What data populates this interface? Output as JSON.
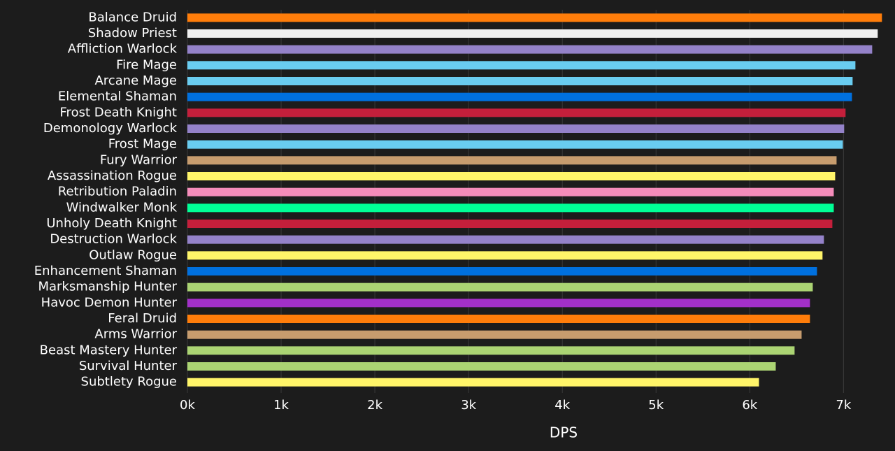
{
  "chart_data": {
    "type": "bar",
    "orientation": "horizontal",
    "x_label": "DPS",
    "categories": [
      "Balance Druid",
      "Shadow Priest",
      "Affliction Warlock",
      "Fire Mage",
      "Arcane Mage",
      "Elemental Shaman",
      "Frost Death Knight",
      "Demonology Warlock",
      "Frost Mage",
      "Fury Warrior",
      "Assassination Rogue",
      "Retribution Paladin",
      "Windwalker Monk",
      "Unholy Death Knight",
      "Destruction Warlock",
      "Outlaw Rogue",
      "Enhancement Shaman",
      "Marksmanship Hunter",
      "Havoc Demon Hunter",
      "Feral Druid",
      "Arms Warrior",
      "Beast Mastery Hunter",
      "Survival Hunter",
      "Subtlety Rogue"
    ],
    "values": [
      7410,
      7365,
      7306,
      7127,
      7097,
      7090,
      7022,
      7007,
      6993,
      6926,
      6911,
      6896,
      6896,
      6881,
      6791,
      6776,
      6717,
      6672,
      6642,
      6642,
      6553,
      6478,
      6277,
      6098
    ],
    "colors": [
      "#ff7d0a",
      "#f0f0f0",
      "#9482c9",
      "#69ccf0",
      "#69ccf0",
      "#0070de",
      "#c41f3b",
      "#9482c9",
      "#69ccf0",
      "#c79c6e",
      "#fff569",
      "#f58cba",
      "#00ff96",
      "#c41f3b",
      "#9482c9",
      "#fff569",
      "#0070de",
      "#abd473",
      "#a330c9",
      "#ff7d0a",
      "#c79c6e",
      "#abd473",
      "#abd473",
      "#fff569"
    ],
    "xlim": [
      0,
      7430
    ],
    "xticks": [
      {
        "value": 0,
        "label": "0k"
      },
      {
        "value": 1000,
        "label": "1k"
      },
      {
        "value": 2000,
        "label": "2k"
      },
      {
        "value": 3000,
        "label": "3k"
      },
      {
        "value": 4000,
        "label": "4k"
      },
      {
        "value": 5000,
        "label": "5k"
      },
      {
        "value": 6000,
        "label": "6k"
      },
      {
        "value": 7000,
        "label": "7k"
      }
    ],
    "grid": true
  }
}
